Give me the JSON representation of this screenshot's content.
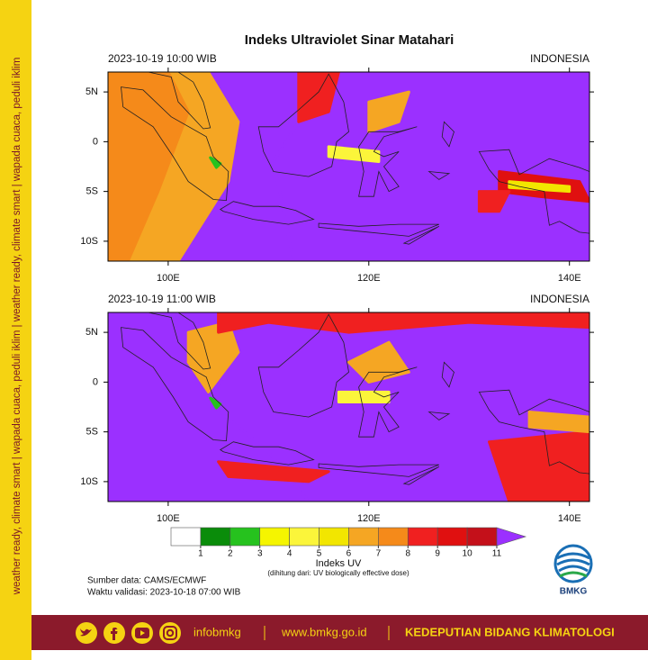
{
  "sidebar": {
    "text": "weather ready, climate smart | wapada cuaca, peduli iklim | weather ready, climate smart | wapada cuaca, peduli iklim"
  },
  "header": {
    "title": "Indeks Ultraviolet Sinar Matahari"
  },
  "maps": [
    {
      "time": "2023-10-19 10:00 WIB",
      "region": "INDONESIA"
    },
    {
      "time": "2023-10-19 11:00 WIB",
      "region": "INDONESIA"
    }
  ],
  "axes": {
    "lonlim": [
      94,
      142
    ],
    "latlim": [
      -12,
      7
    ],
    "lon_ticks": [
      {
        "value": 100,
        "label": "100E"
      },
      {
        "value": 120,
        "label": "120E"
      },
      {
        "value": 140,
        "label": "140E"
      }
    ],
    "lat_ticks": [
      {
        "value": 5,
        "label": "5N"
      },
      0,
      {
        "value": -5,
        "label": "5S"
      },
      {
        "value": -10,
        "label": "10S"
      }
    ]
  },
  "colorbar": {
    "ticks": [
      1,
      2,
      3,
      4,
      5,
      6,
      7,
      8,
      9,
      10,
      11
    ],
    "colors": [
      "#ffffff",
      "#0a8c0a",
      "#26c21e",
      "#f5f500",
      "#fbf53a",
      "#f2e600",
      "#f5a623",
      "#f58a1a",
      "#f02020",
      "#e01010",
      "#c4101a",
      "#9b30ff"
    ],
    "label": "Indeks UV",
    "note": "(dihitung dari: UV biologically effective dose)"
  },
  "notes": {
    "source": "Sumber data: CAMS/ECMWF",
    "validity": "Waktu validasi: 2023-10-18 07:00 WIB"
  },
  "logo": {
    "text": "BMKG"
  },
  "footer": {
    "social": "infobmkg",
    "website": "www.bmkg.go.id",
    "department": "KEDEPUTIAN BIDANG KLIMATOLOGI"
  }
}
